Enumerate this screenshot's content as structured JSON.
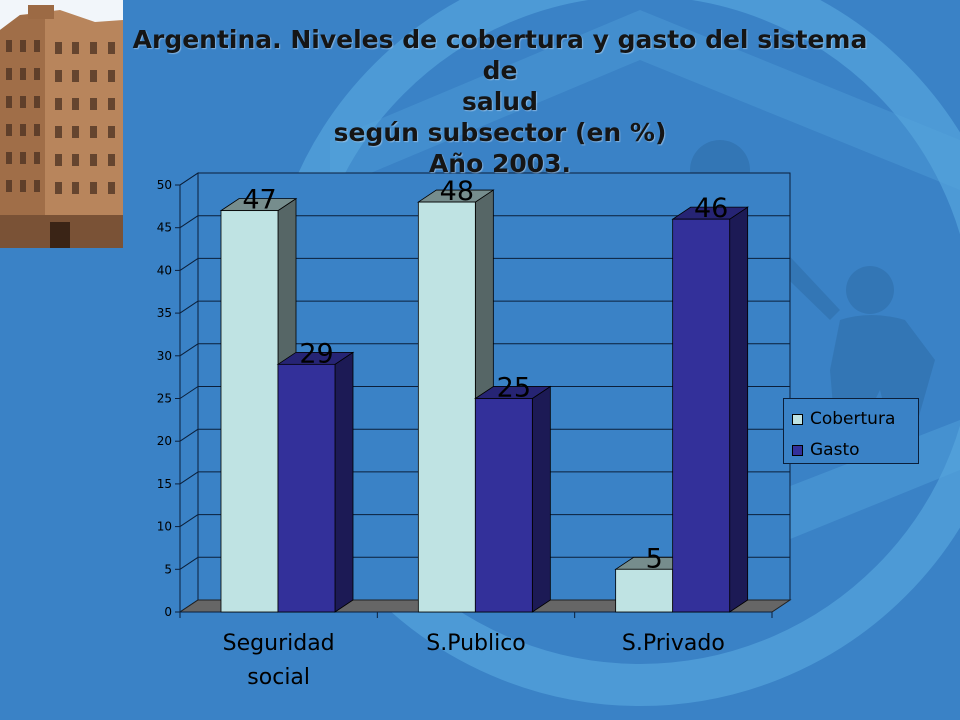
{
  "title": {
    "line1": "Argentina. Niveles de cobertura y gasto del sistema de",
    "line2": "salud",
    "line3": "según subsector (en %)",
    "line4": "Año 2003."
  },
  "colors": {
    "background": "#3a82c6",
    "cobertura": "#bfe3e3",
    "gasto": "#33309a"
  },
  "chart_data": {
    "type": "bar",
    "categories": [
      "Seguridad social",
      "S.Publico",
      "S.Privado"
    ],
    "category_lines": [
      [
        "Seguridad",
        "social"
      ],
      [
        "S.Publico"
      ],
      [
        "S.Privado"
      ]
    ],
    "series": [
      {
        "name": "Cobertura",
        "values": [
          47,
          48,
          5
        ],
        "labels": [
          "47",
          "48",
          "5"
        ]
      },
      {
        "name": "Gasto",
        "values": [
          29,
          25,
          46
        ],
        "labels": [
          "29",
          "25",
          "46"
        ]
      }
    ],
    "ylim": [
      0,
      50
    ],
    "yticks": [
      "0",
      "5",
      "10",
      "15",
      "20",
      "25",
      "30",
      "35",
      "40",
      "45",
      "50"
    ],
    "style": "3d-column",
    "grid": true,
    "legend_position": "right"
  }
}
